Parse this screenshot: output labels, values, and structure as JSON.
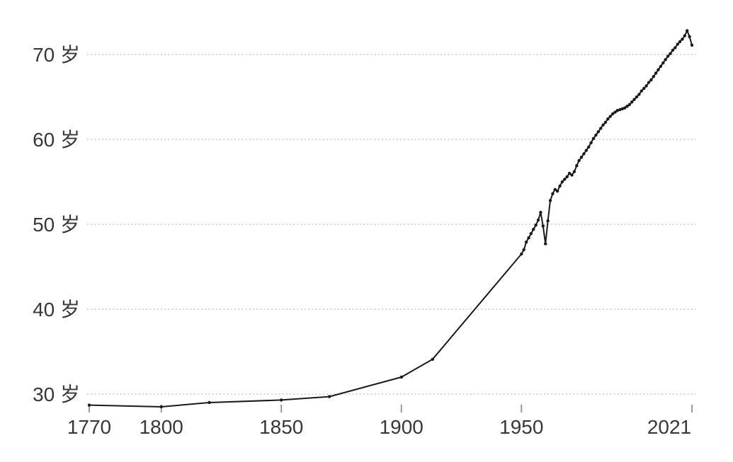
{
  "page": {
    "background_color": "#ffffff"
  },
  "chart_data": {
    "type": "line",
    "title": "",
    "subtitle": "",
    "xlabel": "",
    "ylabel": "",
    "series_name": "life-expectancy",
    "legend": "none",
    "grid": "horizontal-dotted",
    "xlim": [
      1770,
      2021
    ],
    "ylim": [
      28,
      73.5
    ],
    "x_ticks": [
      1770,
      1800,
      1850,
      1900,
      1950,
      2021
    ],
    "y_ticks": [
      30,
      40,
      50,
      60,
      70
    ],
    "y_tick_suffix": "岁",
    "line_color": "#1a1a1a",
    "marker": "dot",
    "grid_color": "#c9c9c9",
    "tick_color": "#8f8f8f",
    "text_color": "#383838",
    "points": [
      [
        1770,
        28.7
      ],
      [
        1800,
        28.5
      ],
      [
        1820,
        29.0
      ],
      [
        1850,
        29.3
      ],
      [
        1870,
        29.7
      ],
      [
        1900,
        32.0
      ],
      [
        1913,
        34.1
      ],
      [
        1950,
        46.5
      ],
      [
        1951,
        47.0
      ],
      [
        1952,
        47.9
      ],
      [
        1953,
        48.4
      ],
      [
        1954,
        48.9
      ],
      [
        1955,
        49.4
      ],
      [
        1956,
        49.9
      ],
      [
        1957,
        50.5
      ],
      [
        1958,
        51.4
      ],
      [
        1959,
        49.8
      ],
      [
        1960,
        47.7
      ],
      [
        1961,
        50.4
      ],
      [
        1962,
        52.8
      ],
      [
        1963,
        53.6
      ],
      [
        1964,
        54.1
      ],
      [
        1965,
        53.9
      ],
      [
        1966,
        54.5
      ],
      [
        1967,
        55.0
      ],
      [
        1968,
        55.3
      ],
      [
        1969,
        55.6
      ],
      [
        1970,
        56.0
      ],
      [
        1971,
        55.8
      ],
      [
        1972,
        56.2
      ],
      [
        1973,
        56.9
      ],
      [
        1974,
        57.5
      ],
      [
        1975,
        57.9
      ],
      [
        1976,
        58.3
      ],
      [
        1977,
        58.7
      ],
      [
        1978,
        59.1
      ],
      [
        1979,
        59.6
      ],
      [
        1980,
        60.1
      ],
      [
        1981,
        60.5
      ],
      [
        1982,
        60.9
      ],
      [
        1983,
        61.3
      ],
      [
        1984,
        61.7
      ],
      [
        1985,
        62.0
      ],
      [
        1986,
        62.4
      ],
      [
        1987,
        62.7
      ],
      [
        1988,
        63.0
      ],
      [
        1989,
        63.2
      ],
      [
        1990,
        63.4
      ],
      [
        1991,
        63.5
      ],
      [
        1992,
        63.6
      ],
      [
        1993,
        63.7
      ],
      [
        1994,
        63.9
      ],
      [
        1995,
        64.1
      ],
      [
        1996,
        64.4
      ],
      [
        1997,
        64.7
      ],
      [
        1998,
        65.0
      ],
      [
        1999,
        65.3
      ],
      [
        2000,
        65.7
      ],
      [
        2001,
        66.0
      ],
      [
        2002,
        66.3
      ],
      [
        2003,
        66.7
      ],
      [
        2004,
        67.0
      ],
      [
        2005,
        67.4
      ],
      [
        2006,
        67.8
      ],
      [
        2007,
        68.2
      ],
      [
        2008,
        68.6
      ],
      [
        2009,
        69.0
      ],
      [
        2010,
        69.4
      ],
      [
        2011,
        69.8
      ],
      [
        2012,
        70.1
      ],
      [
        2013,
        70.5
      ],
      [
        2014,
        70.8
      ],
      [
        2015,
        71.2
      ],
      [
        2016,
        71.5
      ],
      [
        2017,
        71.8
      ],
      [
        2018,
        72.2
      ],
      [
        2019,
        72.8
      ],
      [
        2020,
        72.1
      ],
      [
        2021,
        71.1
      ]
    ]
  }
}
